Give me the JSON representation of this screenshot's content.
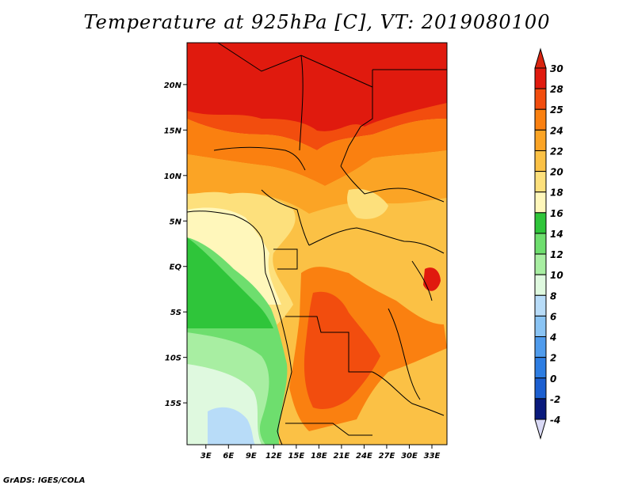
{
  "title": "Temperature at 925hPa [C], VT: 2019080100",
  "credit": "GrADS: IGES/COLA",
  "map": {
    "lat_ticks": [
      "20N",
      "15N",
      "10N",
      "5N",
      "EQ",
      "5S",
      "10S",
      "15S"
    ],
    "lat_values": [
      20,
      15,
      10,
      5,
      0,
      -5,
      -10,
      -15
    ],
    "lon_ticks": [
      "3E",
      "6E",
      "9E",
      "12E",
      "15E",
      "18E",
      "21E",
      "24E",
      "27E",
      "30E",
      "33E"
    ],
    "lon_values": [
      3,
      6,
      9,
      12,
      15,
      18,
      21,
      24,
      27,
      30,
      33
    ],
    "lon_range": [
      0.5,
      35
    ],
    "lat_range": [
      -19.6,
      24.6
    ]
  },
  "colorbar": {
    "labels": [
      "30",
      "28",
      "25",
      "24",
      "22",
      "20",
      "18",
      "16",
      "14",
      "12",
      "10",
      "8",
      "6",
      "4",
      "2",
      "0",
      "-2",
      "-4"
    ],
    "colors": [
      "#e01a0e",
      "#f24d0e",
      "#fa8010",
      "#fba425",
      "#fbc145",
      "#fde07c",
      "#fff7bb",
      "#2fc53a",
      "#6ede6e",
      "#a8eea2",
      "#dff9df",
      "#b8dcf8",
      "#8ac4f4",
      "#4f9bec",
      "#2d7de2",
      "#1c5fd0",
      "#1041b8",
      "#0a1a7c"
    ],
    "over_color": "#d8240f",
    "under_color": "#d9d9f5"
  }
}
